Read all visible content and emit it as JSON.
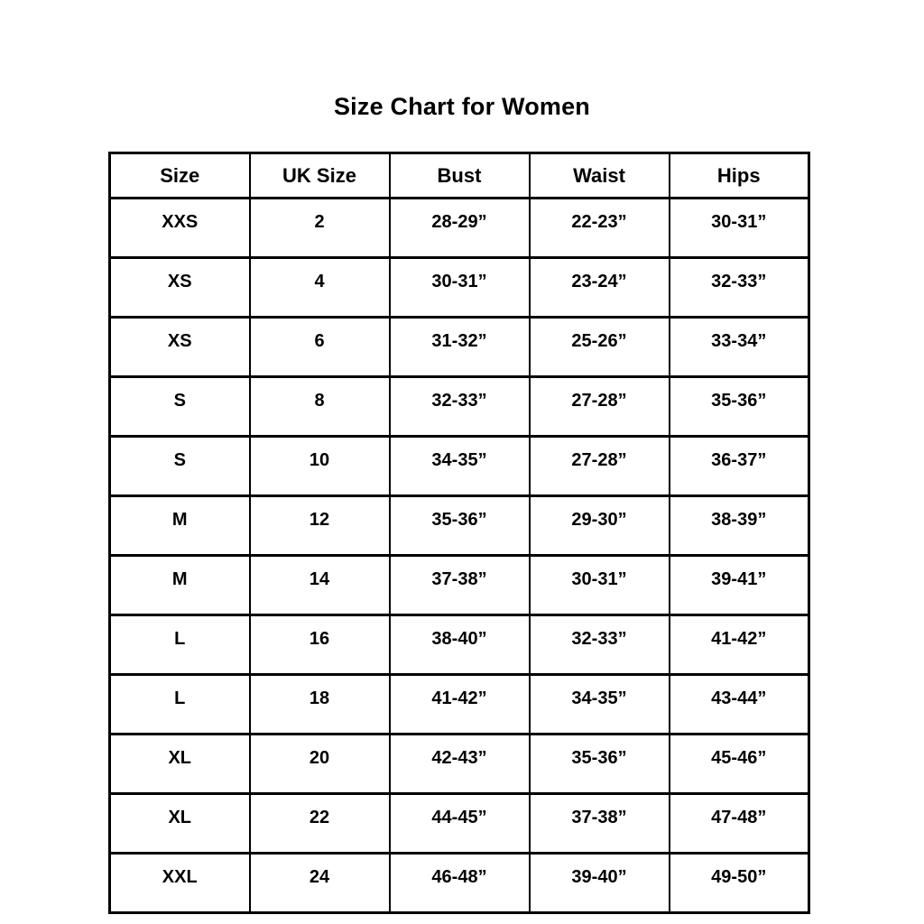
{
  "page_title": "Size Chart for Women",
  "colors": {
    "background": "#ffffff",
    "border": "#000000",
    "text": "#000000"
  },
  "chart_data": {
    "type": "table",
    "title": "Size Chart for Women",
    "columns": [
      "Size",
      "UK Size",
      "Bust",
      "Waist",
      "Hips"
    ],
    "rows": [
      [
        "XXS",
        "2",
        "28-29”",
        "22-23”",
        "30-31”"
      ],
      [
        "XS",
        "4",
        "30-31”",
        "23-24”",
        "32-33”"
      ],
      [
        "XS",
        "6",
        "31-32”",
        "25-26”",
        "33-34”"
      ],
      [
        "S",
        "8",
        "32-33”",
        "27-28”",
        "35-36”"
      ],
      [
        "S",
        "10",
        "34-35”",
        "27-28”",
        "36-37”"
      ],
      [
        "M",
        "12",
        "35-36”",
        "29-30”",
        "38-39”"
      ],
      [
        "M",
        "14",
        "37-38”",
        "30-31”",
        "39-41”"
      ],
      [
        "L",
        "16",
        "38-40”",
        "32-33”",
        "41-42”"
      ],
      [
        "L",
        "18",
        "41-42”",
        "34-35”",
        "43-44”"
      ],
      [
        "XL",
        "20",
        "42-43”",
        "35-36”",
        "45-46”"
      ],
      [
        "XL",
        "22",
        "44-45”",
        "37-38”",
        "47-48”"
      ],
      [
        "XXL",
        "24",
        "46-48”",
        "39-40”",
        "49-50”"
      ]
    ]
  }
}
